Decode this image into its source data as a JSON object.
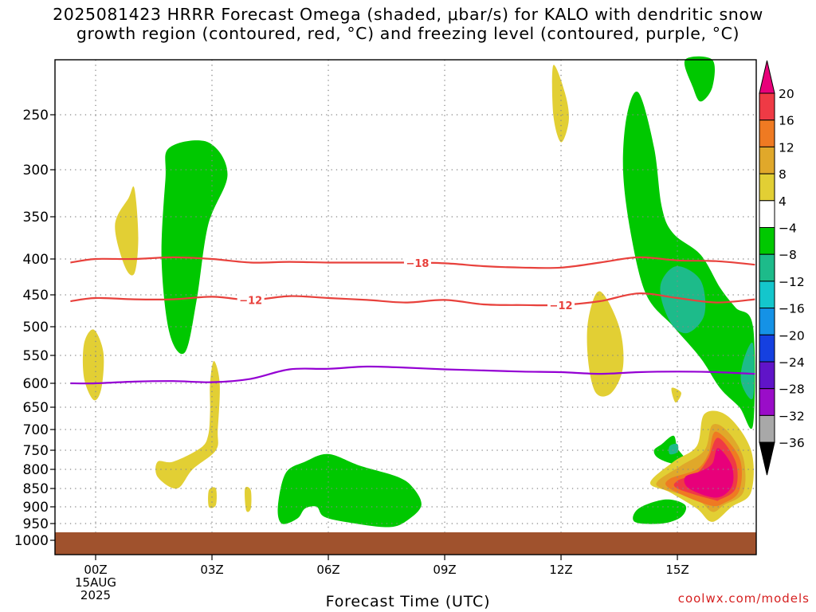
{
  "title_line1": "2025081423 HRRR Forecast Omega (shaded, μbar/s) for KALO with dendritic snow",
  "title_line2": "growth region (contoured, red, °C) and freezing level (contoured, purple, °C)",
  "credit": "coolwx.com/models",
  "chart_data": {
    "type": "heatmap",
    "xlabel": "Forecast Time (UTC)",
    "x_ticks": [
      {
        "hour": 0,
        "label": "00Z",
        "sub1": "15AUG",
        "sub2": "2025"
      },
      {
        "hour": 3,
        "label": "03Z"
      },
      {
        "hour": 6,
        "label": "06Z"
      },
      {
        "hour": 9,
        "label": "09Z"
      },
      {
        "hour": 12,
        "label": "12Z"
      },
      {
        "hour": 15,
        "label": "15Z"
      }
    ],
    "xlim": [
      -0.65,
      17.0
    ],
    "y_ticks": [
      250,
      300,
      350,
      400,
      450,
      500,
      550,
      600,
      650,
      700,
      750,
      800,
      850,
      900,
      950,
      1000
    ],
    "ylim_hpa": [
      200,
      1000
    ],
    "colors": {
      "grid": "#888888",
      "snow_contour": "#e8413c",
      "freezing_level": "#9400d3",
      "ground": "#a0522d"
    },
    "colorbar": {
      "labels": [
        "20",
        "16",
        "12",
        "8",
        "4",
        "−4",
        "−8",
        "−12",
        "−16",
        "−20",
        "−24",
        "−28",
        "−32",
        "−36"
      ],
      "bins": [
        "#ef3a45",
        "#ef7a22",
        "#e0a82a",
        "#e2cf34",
        "#ffffff",
        "#00c800",
        "#1dbb8a",
        "#14c6cc",
        "#1592e6",
        "#1540e0",
        "#6014c8",
        "#9a0dc8",
        "#a8a8a8"
      ],
      "top_arrow": "#e8007a",
      "bottom_arrow": "#000000"
    },
    "omega_regions": [
      {
        "label": "",
        "color": "#00c800",
        "value_range": [
          -8,
          -4
        ],
        "points": [
          [
            1.9,
            280
          ],
          [
            2.9,
            275
          ],
          [
            3.4,
            305
          ],
          [
            2.9,
            360
          ],
          [
            2.6,
            460
          ],
          [
            2.3,
            545
          ],
          [
            1.9,
            510
          ],
          [
            1.7,
            400
          ],
          [
            1.8,
            310
          ]
        ]
      },
      {
        "label": "",
        "color": "#00c800",
        "value_range": [
          -8,
          -4
        ],
        "points": [
          [
            14.0,
            230
          ],
          [
            14.4,
            280
          ],
          [
            14.6,
            340
          ],
          [
            14.9,
            370
          ],
          [
            15.6,
            395
          ],
          [
            16.1,
            440
          ],
          [
            16.5,
            470
          ],
          [
            16.95,
            500
          ],
          [
            16.95,
            690
          ],
          [
            16.6,
            650
          ],
          [
            16.1,
            610
          ],
          [
            15.6,
            555
          ],
          [
            14.9,
            500
          ],
          [
            14.2,
            450
          ],
          [
            13.8,
            370
          ],
          [
            13.6,
            300
          ],
          [
            13.7,
            250
          ]
        ]
      },
      {
        "label": "",
        "color": "#1dbb8a",
        "value_range": [
          -12,
          -8
        ],
        "points": [
          [
            15.0,
            410
          ],
          [
            15.6,
            430
          ],
          [
            15.7,
            480
          ],
          [
            15.3,
            510
          ],
          [
            14.9,
            500
          ],
          [
            14.6,
            460
          ],
          [
            14.6,
            430
          ]
        ]
      },
      {
        "label": "",
        "color": "#1dbb8a",
        "value_range": [
          -12,
          -8
        ],
        "points": [
          [
            16.95,
            530
          ],
          [
            16.7,
            560
          ],
          [
            16.65,
            600
          ],
          [
            16.95,
            630
          ]
        ]
      },
      {
        "label": "",
        "color": "#00c800",
        "value_range": [
          -8,
          -4
        ],
        "points": [
          [
            15.2,
            200
          ],
          [
            15.9,
            200
          ],
          [
            15.9,
            225
          ],
          [
            15.6,
            238
          ],
          [
            15.4,
            225
          ]
        ]
      },
      {
        "label": "",
        "color": "#00c800",
        "value_range": [
          -8,
          -4
        ],
        "points": [
          [
            4.9,
            810
          ],
          [
            5.4,
            780
          ],
          [
            6.0,
            760
          ],
          [
            6.8,
            790
          ],
          [
            7.8,
            820
          ],
          [
            8.2,
            850
          ],
          [
            8.4,
            895
          ],
          [
            8.1,
            935
          ],
          [
            7.6,
            960
          ],
          [
            6.6,
            948
          ],
          [
            5.9,
            930
          ],
          [
            5.7,
            900
          ],
          [
            5.4,
            905
          ],
          [
            5.2,
            935
          ],
          [
            4.8,
            950
          ],
          [
            4.7,
            900
          ]
        ]
      },
      {
        "label": "",
        "color": "#00c800",
        "value_range": [
          -8,
          -4
        ],
        "points": [
          [
            14.6,
            735
          ],
          [
            14.9,
            715
          ],
          [
            15.0,
            745
          ],
          [
            15.2,
            775
          ],
          [
            14.9,
            785
          ],
          [
            14.5,
            770
          ],
          [
            14.4,
            750
          ]
        ]
      },
      {
        "label": "",
        "color": "#1dbb8a",
        "value_range": [
          -12,
          -8
        ],
        "points": [
          [
            14.8,
            740
          ],
          [
            15.0,
            735
          ],
          [
            15.0,
            755
          ],
          [
            14.8,
            760
          ]
        ]
      },
      {
        "label": "",
        "color": "#00c800",
        "value_range": [
          -8,
          -4
        ],
        "points": [
          [
            14.0,
            905
          ],
          [
            14.7,
            880
          ],
          [
            15.2,
            895
          ],
          [
            15.1,
            930
          ],
          [
            14.6,
            950
          ],
          [
            13.9,
            945
          ]
        ]
      },
      {
        "label": "",
        "color": "#e2cf34",
        "value_range": [
          4,
          8
        ],
        "points": [
          [
            0.85,
            330
          ],
          [
            1.0,
            320
          ],
          [
            1.1,
            375
          ],
          [
            1.0,
            420
          ],
          [
            0.75,
            410
          ],
          [
            0.5,
            360
          ]
        ]
      },
      {
        "label": "",
        "color": "#e2cf34",
        "value_range": [
          4,
          8
        ],
        "points": [
          [
            -0.3,
            530
          ],
          [
            -0.05,
            505
          ],
          [
            0.2,
            545
          ],
          [
            0.15,
            610
          ],
          [
            -0.05,
            635
          ],
          [
            -0.3,
            590
          ]
        ]
      },
      {
        "label": "",
        "color": "#e2cf34",
        "value_range": [
          4,
          8
        ],
        "points": [
          [
            2.0,
            780
          ],
          [
            2.7,
            745
          ],
          [
            2.9,
            715
          ],
          [
            2.95,
            660
          ],
          [
            2.95,
            600
          ],
          [
            3.05,
            560
          ],
          [
            3.2,
            600
          ],
          [
            3.15,
            700
          ],
          [
            3.1,
            750
          ],
          [
            2.5,
            800
          ],
          [
            2.1,
            850
          ],
          [
            1.6,
            820
          ],
          [
            1.6,
            780
          ]
        ]
      },
      {
        "label": "",
        "color": "#e2cf34",
        "value_range": [
          4,
          8
        ],
        "points": [
          [
            2.92,
            855
          ],
          [
            3.1,
            850
          ],
          [
            3.1,
            895
          ],
          [
            2.92,
            900
          ]
        ]
      },
      {
        "label": "",
        "color": "#e2cf34",
        "value_range": [
          4,
          8
        ],
        "points": [
          [
            3.85,
            850
          ],
          [
            4.0,
            855
          ],
          [
            4.0,
            905
          ],
          [
            3.88,
            910
          ]
        ]
      },
      {
        "label": "",
        "color": "#e2cf34",
        "value_range": [
          4,
          8
        ],
        "points": [
          [
            11.8,
            205
          ],
          [
            12.1,
            230
          ],
          [
            12.2,
            255
          ],
          [
            12.0,
            275
          ],
          [
            11.8,
            250
          ]
        ]
      },
      {
        "label": "",
        "color": "#e2cf34",
        "value_range": [
          4,
          8
        ],
        "points": [
          [
            13.0,
            445
          ],
          [
            13.5,
            500
          ],
          [
            13.6,
            570
          ],
          [
            13.3,
            620
          ],
          [
            12.9,
            620
          ],
          [
            12.7,
            560
          ],
          [
            12.7,
            490
          ]
        ]
      },
      {
        "label": "",
        "color": "#e2cf34",
        "value_range": [
          4,
          8
        ],
        "points": [
          [
            14.85,
            610
          ],
          [
            15.1,
            620
          ],
          [
            14.95,
            640
          ]
        ]
      },
      {
        "label": "",
        "color": "#e2cf34",
        "value_range": [
          4,
          8
        ],
        "points": [
          [
            15.7,
            665
          ],
          [
            16.3,
            670
          ],
          [
            16.9,
            750
          ],
          [
            16.9,
            860
          ],
          [
            16.4,
            900
          ],
          [
            15.9,
            945
          ],
          [
            15.5,
            905
          ],
          [
            14.8,
            860
          ],
          [
            14.3,
            835
          ],
          [
            14.9,
            780
          ],
          [
            15.5,
            740
          ]
        ]
      },
      {
        "label": "",
        "color": "#e0a82a",
        "value_range": [
          8,
          12
        ],
        "points": [
          [
            15.9,
            690
          ],
          [
            16.3,
            705
          ],
          [
            16.7,
            770
          ],
          [
            16.7,
            860
          ],
          [
            16.2,
            895
          ],
          [
            15.9,
            915
          ],
          [
            15.5,
            880
          ],
          [
            14.6,
            850
          ],
          [
            14.5,
            830
          ],
          [
            15.1,
            790
          ],
          [
            15.7,
            750
          ]
        ]
      },
      {
        "label": "",
        "color": "#ef7a22",
        "value_range": [
          12,
          16
        ],
        "points": [
          [
            16.0,
            705
          ],
          [
            16.6,
            770
          ],
          [
            16.6,
            855
          ],
          [
            16.2,
            890
          ],
          [
            15.8,
            895
          ],
          [
            14.8,
            850
          ],
          [
            14.8,
            825
          ],
          [
            15.5,
            800
          ],
          [
            15.8,
            760
          ]
        ]
      },
      {
        "label": "",
        "color": "#ef3a45",
        "value_range": [
          16,
          20
        ],
        "points": [
          [
            16.05,
            720
          ],
          [
            16.5,
            780
          ],
          [
            16.5,
            850
          ],
          [
            16.1,
            880
          ],
          [
            15.9,
            880
          ],
          [
            15.0,
            850
          ],
          [
            15.0,
            830
          ],
          [
            15.5,
            810
          ],
          [
            15.8,
            770
          ]
        ]
      },
      {
        "label": "",
        "color": "#e8007a",
        "value_range": [
          20,
          24
        ],
        "points": [
          [
            16.05,
            745
          ],
          [
            16.4,
            790
          ],
          [
            16.4,
            845
          ],
          [
            16.0,
            875
          ],
          [
            15.3,
            850
          ],
          [
            15.2,
            820
          ],
          [
            15.6,
            805
          ],
          [
            15.9,
            785
          ]
        ]
      }
    ],
    "contours": [
      {
        "kind": "dendritic",
        "label": "−18",
        "label_at_hour": 8.3,
        "color": "#e8413c",
        "points": [
          [
            -0.65,
            405
          ],
          [
            0,
            400
          ],
          [
            1,
            400
          ],
          [
            2,
            398
          ],
          [
            3,
            400
          ],
          [
            4,
            405
          ],
          [
            5,
            404
          ],
          [
            6,
            405
          ],
          [
            7,
            405
          ],
          [
            8,
            405
          ],
          [
            9,
            406
          ],
          [
            10,
            410
          ],
          [
            11,
            412
          ],
          [
            12,
            412
          ],
          [
            13,
            405
          ],
          [
            14,
            398
          ],
          [
            15,
            402
          ],
          [
            16,
            403
          ],
          [
            17,
            408
          ]
        ]
      },
      {
        "kind": "dendritic",
        "label": "−12",
        "label_at_hour": 4.0,
        "label2_at_hour": 12.0,
        "color": "#e8413c",
        "points": [
          [
            -0.65,
            460
          ],
          [
            0,
            455
          ],
          [
            1,
            457
          ],
          [
            2,
            457
          ],
          [
            3,
            453
          ],
          [
            4,
            458
          ],
          [
            5,
            452
          ],
          [
            6,
            455
          ],
          [
            7,
            458
          ],
          [
            8,
            462
          ],
          [
            9,
            458
          ],
          [
            10,
            465
          ],
          [
            11,
            466
          ],
          [
            12,
            466
          ],
          [
            13,
            460
          ],
          [
            14,
            448
          ],
          [
            15,
            455
          ],
          [
            16,
            462
          ],
          [
            17,
            457
          ]
        ]
      },
      {
        "kind": "freezing",
        "label": "",
        "color": "#9400d3",
        "points": [
          [
            -0.65,
            600
          ],
          [
            0,
            600
          ],
          [
            1,
            597
          ],
          [
            2,
            596
          ],
          [
            3,
            598
          ],
          [
            4,
            592
          ],
          [
            5,
            575
          ],
          [
            6,
            574
          ],
          [
            7,
            570
          ],
          [
            8,
            572
          ],
          [
            9,
            575
          ],
          [
            10,
            577
          ],
          [
            11,
            579
          ],
          [
            12,
            580
          ],
          [
            13,
            583
          ],
          [
            14,
            580
          ],
          [
            15,
            579
          ],
          [
            16,
            580
          ],
          [
            17,
            583
          ]
        ]
      }
    ],
    "ground_level_hpa": 975
  }
}
